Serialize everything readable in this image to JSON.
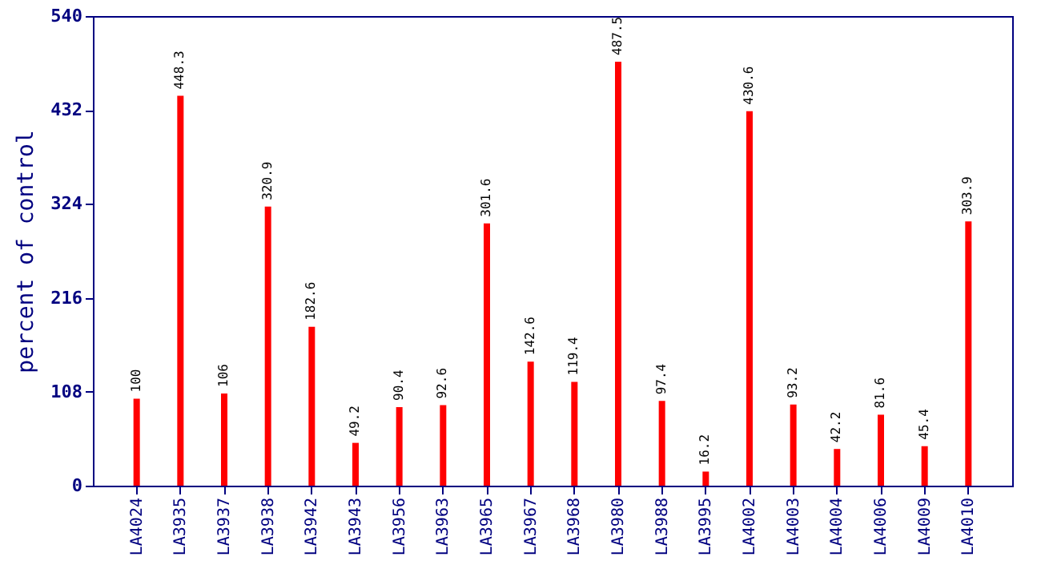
{
  "chart_data": {
    "type": "bar",
    "ylabel": "percent of control",
    "categories": [
      "LA4024",
      "LA3935",
      "LA3937",
      "LA3938",
      "LA3942",
      "LA3943",
      "LA3956",
      "LA3963",
      "LA3965",
      "LA3967",
      "LA3968",
      "LA3980",
      "LA3988",
      "LA3995",
      "LA4002",
      "LA4003",
      "LA4004",
      "LA4006",
      "LA4009",
      "LA4010"
    ],
    "values": [
      100,
      448.3,
      106,
      320.9,
      182.6,
      49.2,
      90.4,
      92.6,
      301.6,
      142.6,
      119.4,
      487.5,
      97.4,
      16.2,
      430.6,
      93.2,
      42.2,
      81.6,
      45.4,
      303.9
    ],
    "color": "#ff0000",
    "ylim": [
      0,
      540
    ],
    "yticks": [
      0,
      108,
      216,
      324,
      432,
      540
    ],
    "grid": false,
    "data_labels": true
  }
}
